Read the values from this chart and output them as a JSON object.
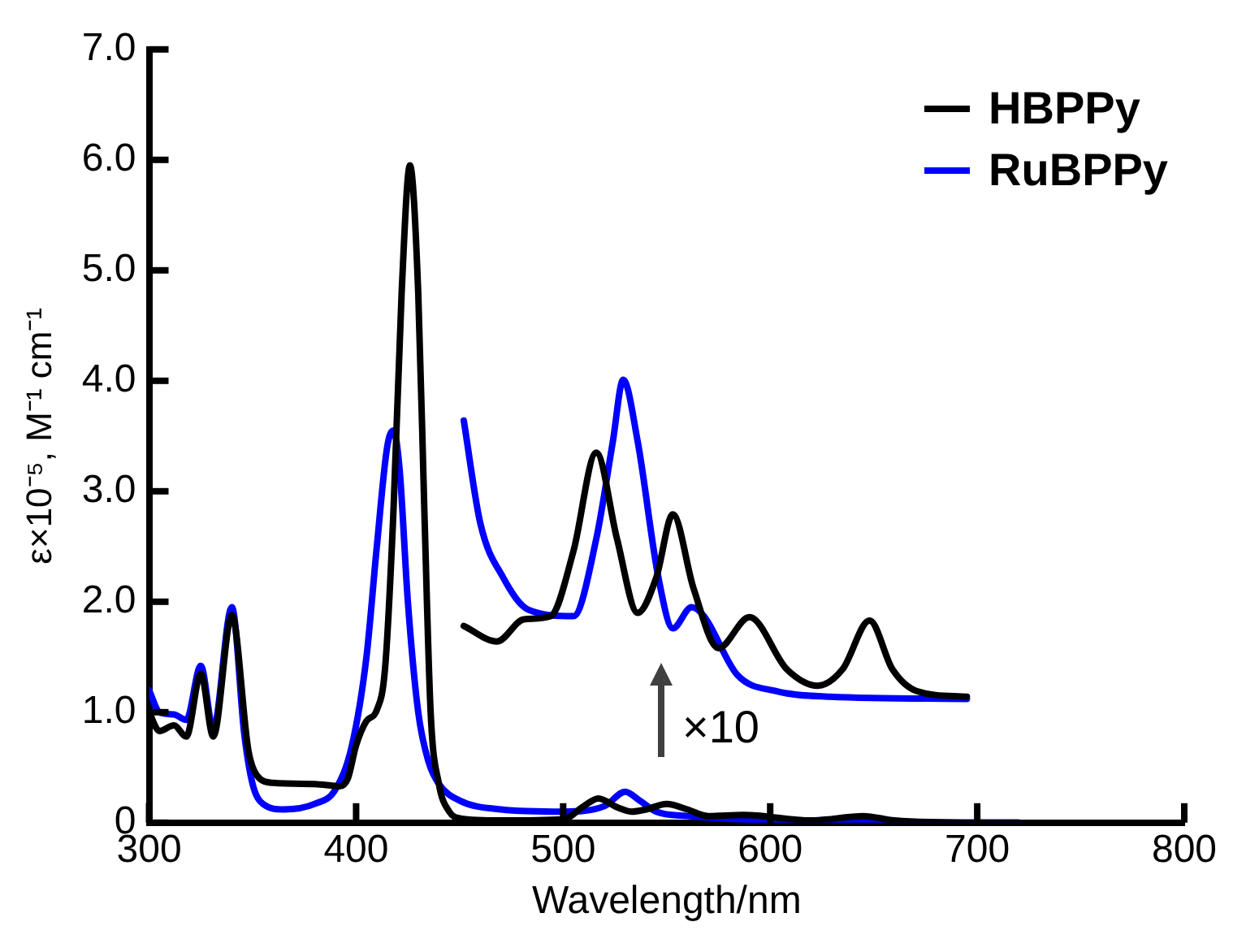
{
  "chart_data": {
    "type": "line",
    "xlabel": "Wavelength/nm",
    "ylabel": "ε×10⁻⁵, M⁻¹ cm⁻¹",
    "xlim": [
      300,
      800
    ],
    "ylim": [
      0,
      7
    ],
    "xticks": [
      300,
      400,
      500,
      600,
      700,
      800
    ],
    "yticks": [
      0,
      {
        "value": 1,
        "label": "1.0"
      },
      {
        "value": 2,
        "label": "2.0"
      },
      {
        "value": 3,
        "label": "3.0"
      },
      {
        "value": 4,
        "label": "4.0"
      },
      {
        "value": 5,
        "label": "5.0"
      },
      {
        "value": 6,
        "label": "6.0"
      },
      {
        "value": 7,
        "label": "7.0"
      }
    ],
    "grid": false,
    "legend": "top right",
    "marker": "none",
    "line_style": "solid",
    "annotations": [
      "×10"
    ],
    "series": [
      {
        "name": "HBPPy",
        "color": "#000000",
        "x": [
          300,
          305,
          312,
          318,
          325,
          331,
          340,
          348,
          352,
          360,
          380,
          392,
          396,
          400,
          405,
          410,
          414,
          418,
          422,
          426,
          430,
          433,
          436,
          440,
          445,
          450,
          470,
          500,
          510,
          517,
          526,
          533,
          540,
          550,
          560,
          570,
          587,
          620,
          645,
          660,
          700,
          720
        ],
        "values": [
          1.0,
          0.83,
          0.88,
          0.78,
          1.35,
          0.78,
          1.88,
          0.65,
          0.43,
          0.36,
          0.35,
          0.33,
          0.4,
          0.7,
          0.92,
          1.02,
          1.4,
          2.8,
          4.8,
          5.95,
          4.8,
          2.8,
          1.0,
          0.35,
          0.1,
          0.04,
          0.02,
          0.03,
          0.15,
          0.22,
          0.14,
          0.1,
          0.12,
          0.17,
          0.12,
          0.06,
          0.07,
          0.02,
          0.06,
          0.02,
          0.0,
          0.0
        ]
      },
      {
        "name": "RuBPPy",
        "color": "#0000ff",
        "x": [
          300,
          305,
          312,
          318,
          325,
          331,
          340,
          346,
          350,
          355,
          365,
          380,
          390,
          398,
          405,
          410,
          415,
          418,
          421,
          425,
          430,
          435,
          440,
          450,
          470,
          500,
          520,
          530,
          537,
          545,
          560,
          600,
          700,
          720
        ],
        "values": [
          1.2,
          1.0,
          0.98,
          0.93,
          1.42,
          0.85,
          1.95,
          0.8,
          0.35,
          0.17,
          0.12,
          0.17,
          0.3,
          0.7,
          1.5,
          2.5,
          3.4,
          3.55,
          3.2,
          2.0,
          1.0,
          0.55,
          0.35,
          0.2,
          0.12,
          0.1,
          0.15,
          0.28,
          0.2,
          0.1,
          0.06,
          0.02,
          0.0,
          0.0
        ]
      },
      {
        "color": "#000000",
        "x": [
          452,
          468,
          481,
          494,
          505,
          516,
          526,
          536,
          545,
          553,
          563,
          575,
          590,
          608,
          623,
          635,
          648,
          659,
          671,
          695
        ],
        "values": [
          1.78,
          1.64,
          1.84,
          1.87,
          2.46,
          3.35,
          2.57,
          1.9,
          2.22,
          2.79,
          2.12,
          1.58,
          1.86,
          1.39,
          1.24,
          1.39,
          1.83,
          1.39,
          1.19,
          1.14
        ]
      },
      {
        "color": "#0000ff",
        "x": [
          452,
          460,
          471,
          483,
          505,
          516,
          524,
          529,
          536,
          546,
          553,
          562,
          568,
          584,
          603,
          629,
          695
        ],
        "values": [
          3.64,
          2.71,
          2.22,
          1.93,
          1.87,
          2.57,
          3.45,
          4.01,
          3.45,
          2.22,
          1.76,
          1.95,
          1.87,
          1.34,
          1.19,
          1.14,
          1.12
        ]
      }
    ]
  }
}
